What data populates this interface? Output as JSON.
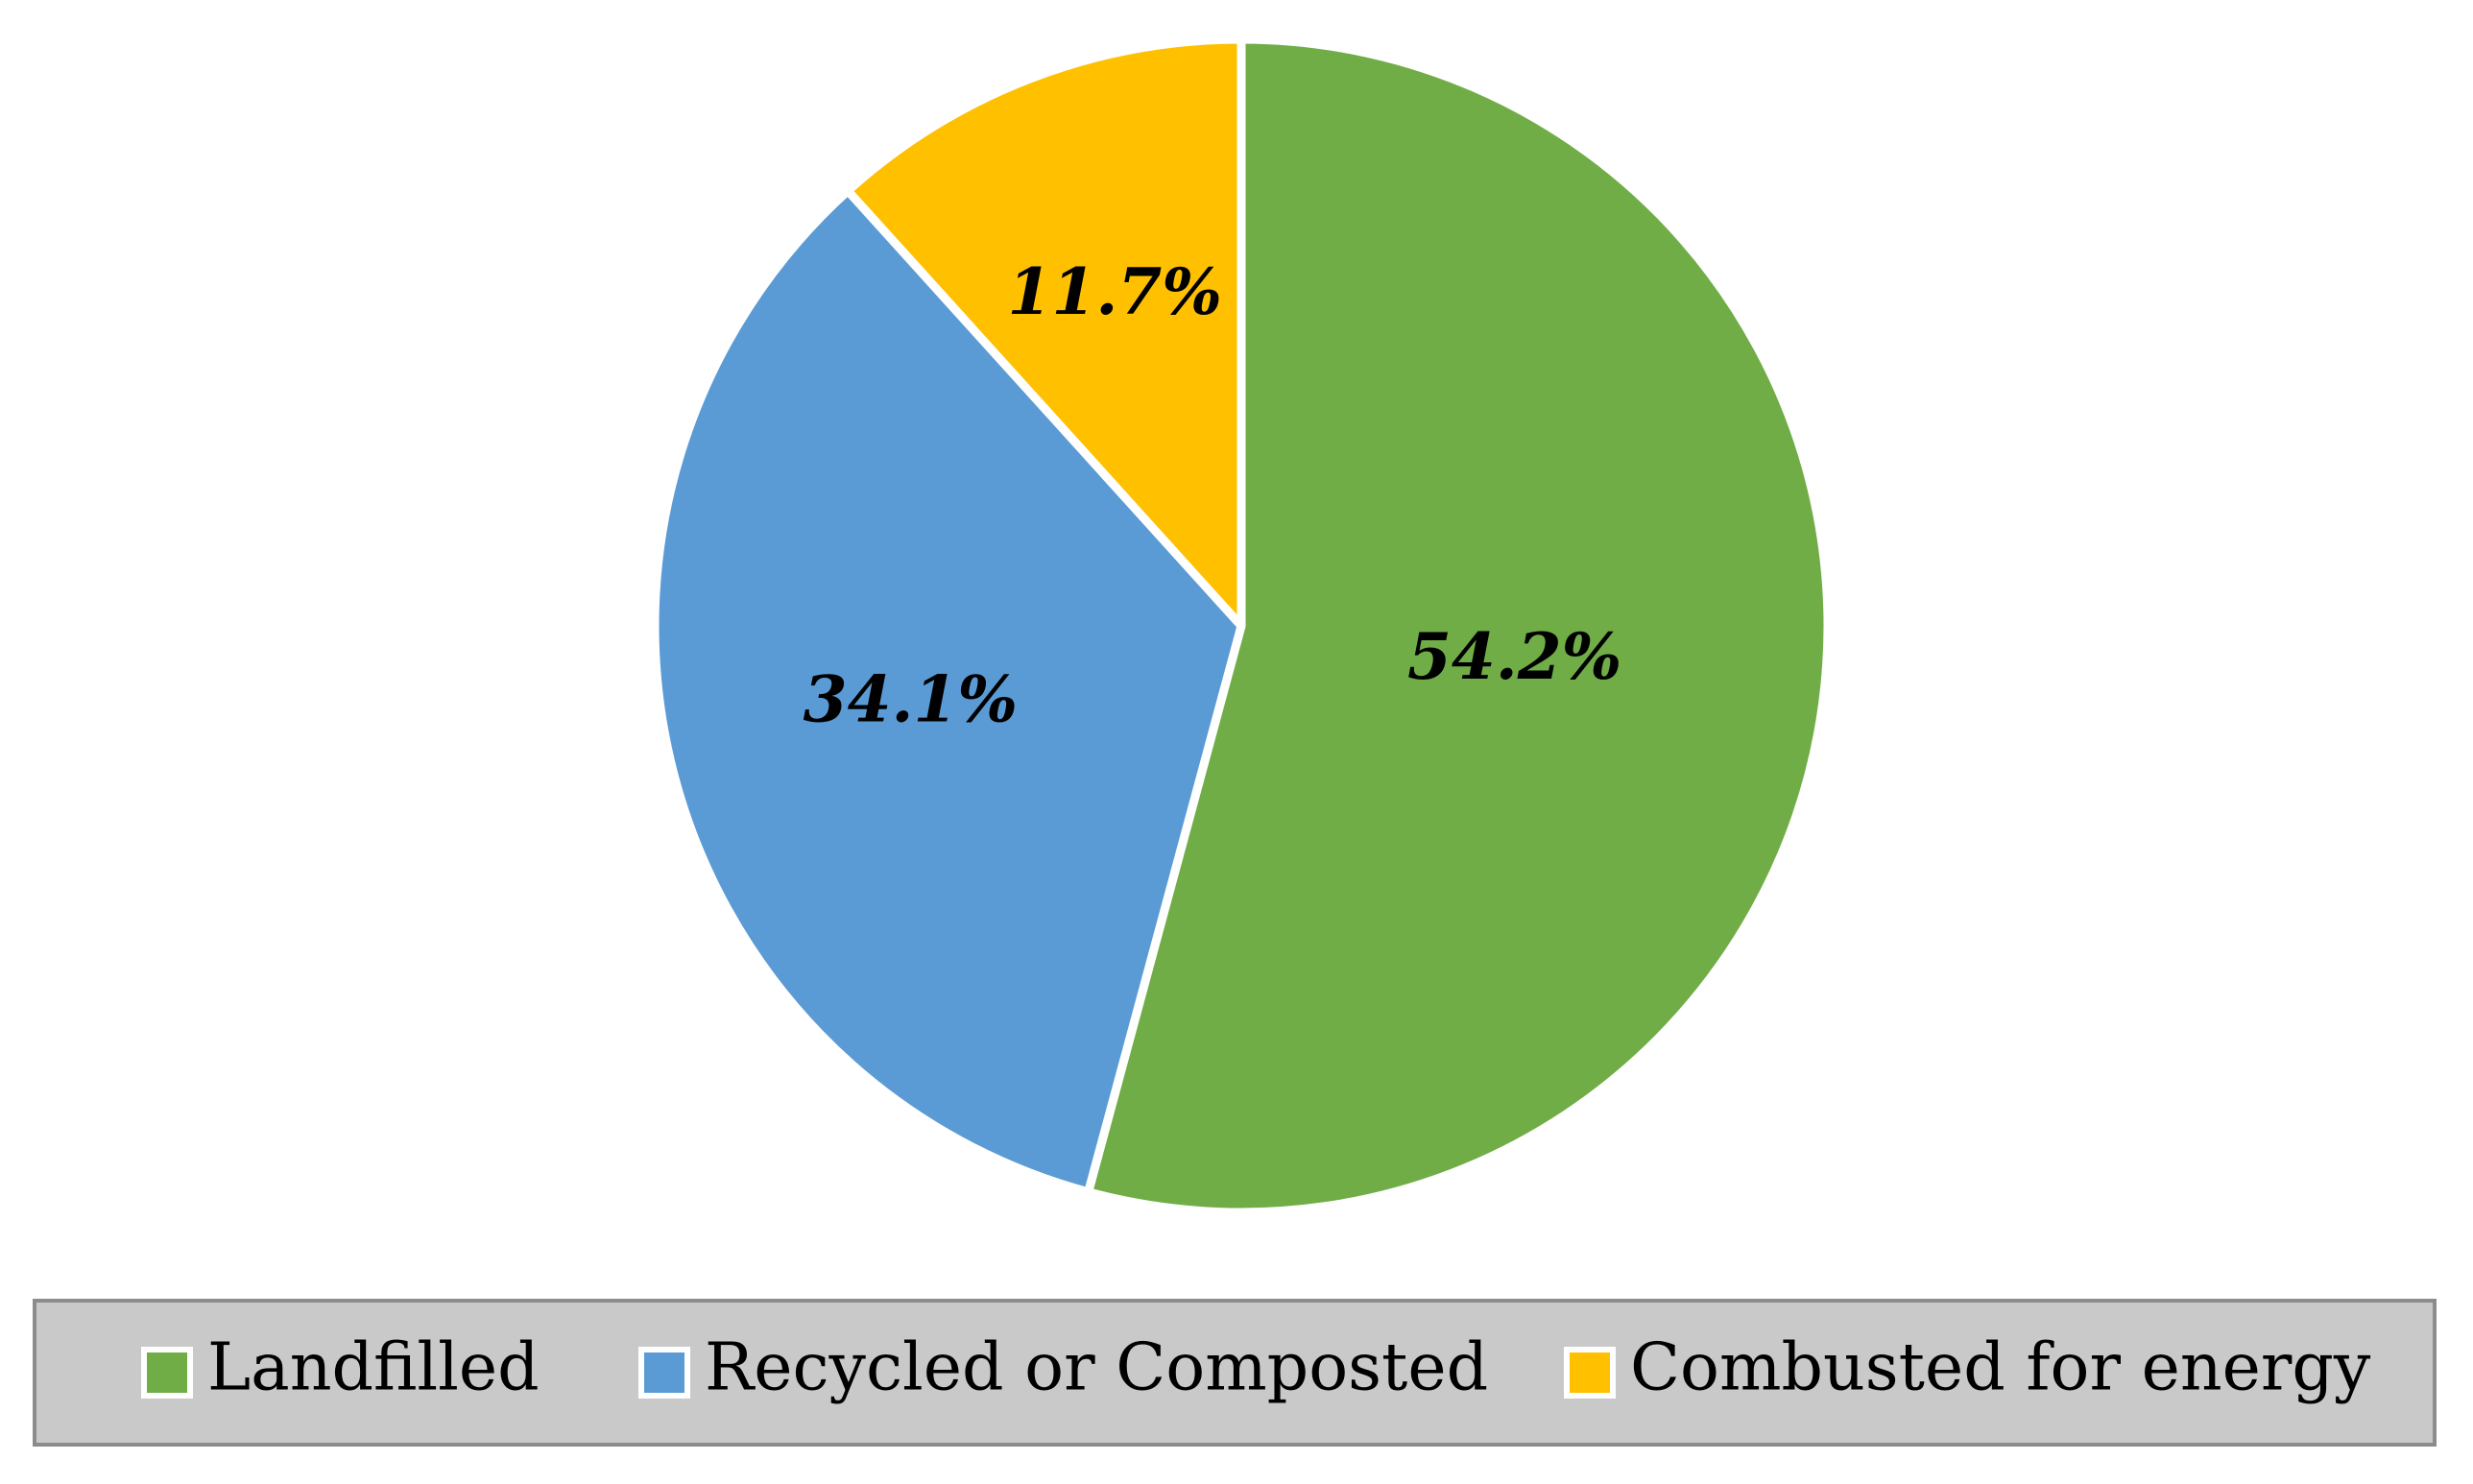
{
  "chart_data": {
    "type": "pie",
    "categories": [
      "Landfilled",
      "Recycled or Composted",
      "Combusted for energy"
    ],
    "values": [
      54.2,
      34.1,
      11.7
    ],
    "data_labels": [
      "54.2%",
      "34.1%",
      "11.7%"
    ],
    "colors": [
      "#70AD47",
      "#5B9BD5",
      "#FFC000"
    ],
    "start_angle": "12 o'clock",
    "direction": "clockwise",
    "legend_placement": "bottom"
  }
}
